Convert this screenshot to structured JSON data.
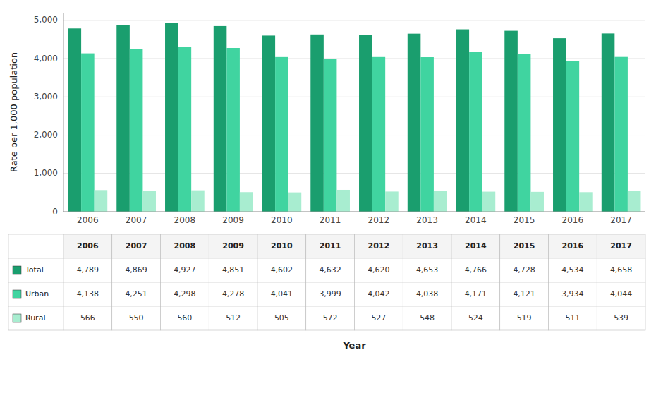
{
  "chart_data": {
    "type": "bar",
    "categories": [
      "2006",
      "2007",
      "2008",
      "2009",
      "2010",
      "2011",
      "2012",
      "2013",
      "2014",
      "2015",
      "2016",
      "2017"
    ],
    "series": [
      {
        "name": "Total",
        "color": "#1a9e6e",
        "values": [
          4789,
          4869,
          4927,
          4851,
          4602,
          4632,
          4620,
          4653,
          4766,
          4728,
          4534,
          4658
        ],
        "value_labels": [
          "4,789",
          "4,869",
          "4,927",
          "4,851",
          "4,602",
          "4,632",
          "4,620",
          "4,653",
          "4,766",
          "4,728",
          "4,534",
          "4,658"
        ]
      },
      {
        "name": "Urban",
        "color": "#40d4a0",
        "values": [
          4138,
          4251,
          4298,
          4278,
          4041,
          3999,
          4042,
          4038,
          4171,
          4121,
          3934,
          4044
        ],
        "value_labels": [
          "4,138",
          "4,251",
          "4,298",
          "4,278",
          "4,041",
          "3,999",
          "4,042",
          "4,038",
          "4,171",
          "4,121",
          "3,934",
          "4,044"
        ]
      },
      {
        "name": "Rural",
        "color": "#a8edd0",
        "values": [
          566,
          550,
          560,
          512,
          505,
          572,
          527,
          548,
          524,
          519,
          511,
          539
        ]
      }
    ],
    "x_label": "Year",
    "y_label": "Rate per 1,000 population",
    "ylim": [
      0,
      5200
    ],
    "yticks": [
      0,
      {
        "value": 1000,
        "label": "1,000"
      },
      {
        "value": 2000,
        "label": "2,000"
      },
      {
        "value": 3000,
        "label": "3,000"
      },
      {
        "value": 4000,
        "label": "4,000"
      },
      {
        "value": 5000,
        "label": "5,000"
      }
    ],
    "grid": true
  }
}
